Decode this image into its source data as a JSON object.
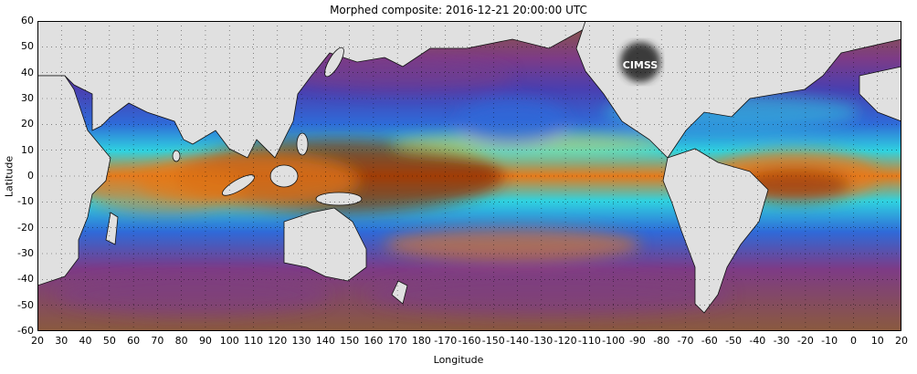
{
  "title": "Morphed composite: 2016-12-21 20:00:00 UTC",
  "xlabel": "Longitude",
  "ylabel": "Latitude",
  "x_ticks": [
    "20",
    "30",
    "40",
    "50",
    "60",
    "70",
    "80",
    "90",
    "100",
    "110",
    "120",
    "130",
    "140",
    "150",
    "160",
    "170",
    "180",
    "-170",
    "-160",
    "-150",
    "-140",
    "-130",
    "-120",
    "-110",
    "-100",
    "-90",
    "-80",
    "-70",
    "-60",
    "-50",
    "-40",
    "-30",
    "-20",
    "-10",
    "0",
    "10",
    "20"
  ],
  "y_ticks": [
    "60",
    "50",
    "40",
    "30",
    "20",
    "10",
    "0",
    "-10",
    "-20",
    "-30",
    "-40",
    "-50",
    "-60"
  ],
  "logo_text": "CIMSS",
  "colors": {
    "land": "#e0e0e0",
    "coast": "#111111",
    "dry_purple": "#7d3b86",
    "dry_brown": "#8a5a3e",
    "moist_blue": "#2f6ad8",
    "moist_cyan": "#2fd3e0",
    "moist_green": "#8fe07a",
    "moist_yellow": "#f4dd46",
    "wet_orange": "#e67a1a",
    "very_wet": "#8a2a05"
  }
}
